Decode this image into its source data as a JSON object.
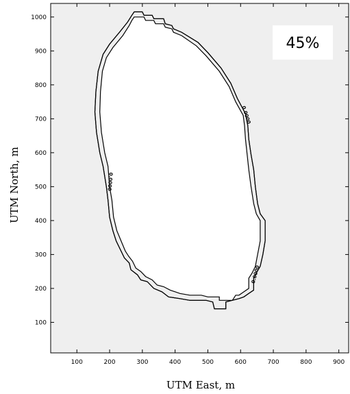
{
  "chart_data": {
    "type": "contour",
    "xlabel": "UTM East, m",
    "ylabel": "UTM North, m",
    "xlim": [
      20,
      930
    ],
    "ylim": [
      10,
      1040
    ],
    "x_ticks": [
      100,
      200,
      300,
      400,
      500,
      600,
      700,
      800,
      900
    ],
    "y_ticks": [
      100,
      200,
      300,
      400,
      500,
      600,
      700,
      800,
      900,
      1000
    ],
    "annotation": "45%",
    "background": "#efefef",
    "line_color": "#000000",
    "grid": false,
    "contours": [
      {
        "name": "outer",
        "points": [
          [
            275,
            1015
          ],
          [
            300,
            1015
          ],
          [
            305,
            1005
          ],
          [
            330,
            1005
          ],
          [
            335,
            995
          ],
          [
            365,
            995
          ],
          [
            370,
            980
          ],
          [
            390,
            975
          ],
          [
            395,
            965
          ],
          [
            420,
            955
          ],
          [
            470,
            925
          ],
          [
            500,
            895
          ],
          [
            540,
            850
          ],
          [
            570,
            805
          ],
          [
            590,
            760
          ],
          [
            615,
            715
          ],
          [
            622,
            680
          ],
          [
            625,
            640
          ],
          [
            632,
            595
          ],
          [
            640,
            550
          ],
          [
            645,
            500
          ],
          [
            652,
            450
          ],
          [
            660,
            420
          ],
          [
            675,
            400
          ],
          [
            675,
            340
          ],
          [
            668,
            300
          ],
          [
            660,
            265
          ],
          [
            648,
            245
          ],
          [
            640,
            230
          ],
          [
            640,
            195
          ],
          [
            625,
            185
          ],
          [
            610,
            175
          ],
          [
            595,
            170
          ],
          [
            555,
            160
          ],
          [
            555,
            140
          ],
          [
            520,
            140
          ],
          [
            515,
            160
          ],
          [
            495,
            165
          ],
          [
            445,
            165
          ],
          [
            415,
            170
          ],
          [
            380,
            175
          ],
          [
            360,
            190
          ],
          [
            335,
            200
          ],
          [
            315,
            220
          ],
          [
            295,
            225
          ],
          [
            285,
            240
          ],
          [
            265,
            255
          ],
          [
            260,
            275
          ],
          [
            245,
            290
          ],
          [
            235,
            310
          ],
          [
            220,
            340
          ],
          [
            210,
            370
          ],
          [
            200,
            410
          ],
          [
            195,
            460
          ],
          [
            190,
            500
          ],
          [
            180,
            560
          ],
          [
            170,
            600
          ],
          [
            160,
            660
          ],
          [
            155,
            720
          ],
          [
            158,
            780
          ],
          [
            165,
            840
          ],
          [
            180,
            890
          ],
          [
            200,
            920
          ],
          [
            230,
            955
          ],
          [
            255,
            985
          ],
          [
            268,
            1005
          ],
          [
            275,
            1015
          ]
        ]
      },
      {
        "name": "inner",
        "points": [
          [
            275,
            1000
          ],
          [
            305,
            1000
          ],
          [
            310,
            990
          ],
          [
            335,
            990
          ],
          [
            340,
            980
          ],
          [
            365,
            980
          ],
          [
            370,
            970
          ],
          [
            390,
            965
          ],
          [
            395,
            955
          ],
          [
            420,
            945
          ],
          [
            465,
            915
          ],
          [
            495,
            885
          ],
          [
            535,
            840
          ],
          [
            565,
            795
          ],
          [
            585,
            750
          ],
          [
            608,
            710
          ],
          [
            612,
            680
          ],
          [
            615,
            640
          ],
          [
            620,
            595
          ],
          [
            625,
            550
          ],
          [
            632,
            500
          ],
          [
            640,
            450
          ],
          [
            648,
            420
          ],
          [
            660,
            400
          ],
          [
            660,
            340
          ],
          [
            652,
            300
          ],
          [
            645,
            265
          ],
          [
            635,
            245
          ],
          [
            625,
            230
          ],
          [
            625,
            200
          ],
          [
            610,
            190
          ],
          [
            595,
            180
          ],
          [
            585,
            180
          ],
          [
            575,
            165
          ],
          [
            535,
            165
          ],
          [
            535,
            175
          ],
          [
            500,
            175
          ],
          [
            480,
            180
          ],
          [
            445,
            180
          ],
          [
            415,
            185
          ],
          [
            385,
            195
          ],
          [
            365,
            205
          ],
          [
            345,
            210
          ],
          [
            330,
            225
          ],
          [
            310,
            235
          ],
          [
            295,
            250
          ],
          [
            280,
            260
          ],
          [
            270,
            280
          ],
          [
            258,
            295
          ],
          [
            248,
            310
          ],
          [
            235,
            340
          ],
          [
            222,
            370
          ],
          [
            212,
            410
          ],
          [
            207,
            460
          ],
          [
            200,
            500
          ],
          [
            195,
            560
          ],
          [
            185,
            600
          ],
          [
            175,
            660
          ],
          [
            170,
            720
          ],
          [
            172,
            780
          ],
          [
            178,
            840
          ],
          [
            190,
            880
          ],
          [
            210,
            910
          ],
          [
            240,
            945
          ],
          [
            260,
            975
          ],
          [
            268,
            990
          ],
          [
            275,
            1000
          ]
        ]
      }
    ],
    "contour_labels": [
      {
        "text": "0.0000",
        "x": 613,
        "y": 710,
        "angle": 72
      },
      {
        "text": "0.0000",
        "x": 197,
        "y": 515,
        "angle": 95
      },
      {
        "text": "0.0000",
        "x": 650,
        "y": 240,
        "angle": -75
      }
    ]
  }
}
